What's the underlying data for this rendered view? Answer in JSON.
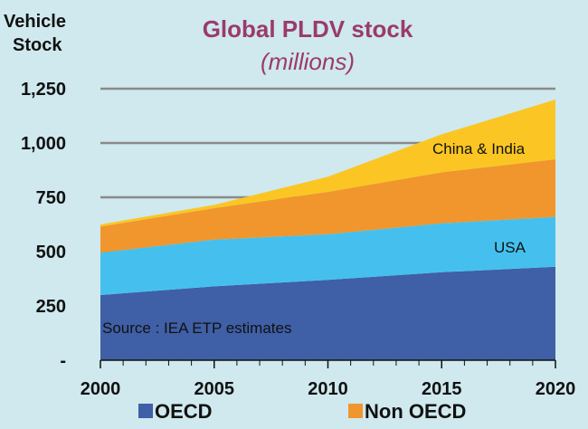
{
  "chart_data": {
    "type": "area",
    "stacked": true,
    "title": "Global PLDV stock",
    "subtitle": "(millions)",
    "ylabel_lines": [
      "Vehicle",
      "Stock"
    ],
    "x": [
      2000,
      2005,
      2010,
      2015,
      2020
    ],
    "ylim": [
      0,
      1250
    ],
    "yticks": [
      0,
      250,
      500,
      750,
      1000,
      1250
    ],
    "ytick_labels": [
      "-",
      "250",
      "500",
      "750",
      "1,000",
      "1,250"
    ],
    "grid": true,
    "series": [
      {
        "name": "OECD",
        "values": [
          300,
          340,
          370,
          405,
          430
        ],
        "color": "#3f5fa6"
      },
      {
        "name": "USA",
        "values": [
          195,
          215,
          210,
          225,
          230
        ],
        "color": "#45c0ee"
      },
      {
        "name": "Non OECD",
        "values": [
          120,
          145,
          195,
          235,
          265
        ],
        "color": "#f0962c"
      },
      {
        "name": "China & India",
        "values": [
          10,
          15,
          70,
          175,
          275
        ],
        "color": "#fbc623"
      }
    ],
    "legend": {
      "placement": "bottom",
      "items": [
        {
          "label": "OECD",
          "color": "#3f5fa6"
        },
        {
          "label": "Non OECD",
          "color": "#f0962c"
        }
      ]
    },
    "annotations": [
      "Source : IEA ETP  estimates",
      "USA",
      "China & India"
    ]
  }
}
